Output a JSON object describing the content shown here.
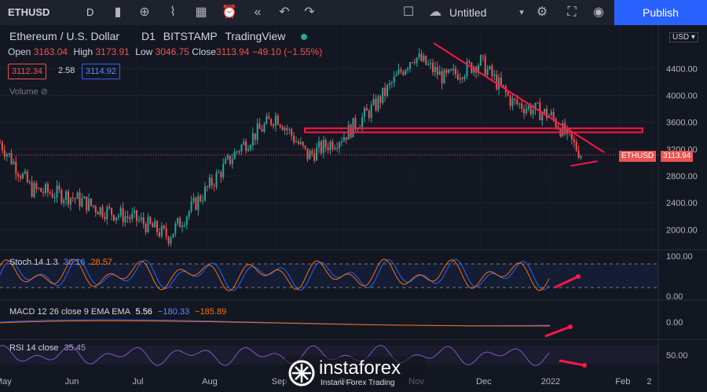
{
  "toolbar": {
    "symbol": "ETHUSD",
    "interval": "D",
    "layout_name": "Untitled",
    "publish_label": "Publish",
    "icons": [
      "candles-icon",
      "add-indicator-icon",
      "indicators-icon",
      "templates-icon",
      "alert-icon",
      "replay-icon",
      "undo-icon",
      "redo-icon",
      "layout-square-icon",
      "cloud-icon",
      "chevron-down-icon",
      "settings-icon",
      "fullscreen-icon",
      "camera-icon"
    ]
  },
  "legend": {
    "title": "Ethereum / U.S. Dollar",
    "interval": "D1",
    "exchange": "BITSTAMP",
    "source": "TradingView",
    "open_label": "Open",
    "open": "3163.04",
    "high_label": "High",
    "high": "3173.91",
    "low_label": "Low",
    "low": "3046.75",
    "close_label": "Close",
    "close": "3113.94",
    "change": "−49.10 (−1.55%)",
    "bid": "3112.34",
    "spread": "2.58",
    "ask": "3114.92",
    "volume_label": "Volume"
  },
  "axis": {
    "currency": "USD",
    "current_tag_label": "ETHUSD",
    "current_tag_value": "3113.94"
  },
  "indicators": {
    "stoch": {
      "label": "Stoch 14 1 3",
      "k": "30.16",
      "d": "28.57",
      "axis": [
        "100.00",
        "0.00"
      ]
    },
    "macd": {
      "label": "MACD 12 26 close 9 EMA EMA",
      "hist": "5.56",
      "macd": "−180.33",
      "signal": "−185.89",
      "axis": [
        "0.00"
      ]
    },
    "rsi": {
      "label": "RSI 14 close",
      "value": "35.45",
      "axis": [
        "50.00"
      ]
    }
  },
  "watermark": {
    "brand": "instaforex",
    "tagline": "Instant Forex Trading"
  },
  "colors": {
    "up": "#26a69a",
    "down": "#ef5350",
    "drawing": "#ff1744",
    "stoch_k": "#2962ff",
    "stoch_d": "#ff6d00",
    "rsi": "#7e57c2"
  },
  "chart_data": {
    "type": "candlestick",
    "symbol": "ETHUSD",
    "ylim": [
      1700,
      5000
    ],
    "yticks": [
      2000,
      2400,
      2800,
      3200,
      3600,
      4000,
      4400
    ],
    "xticks": [
      "May",
      "Jun",
      "Jul",
      "Aug",
      "Sep",
      "Oct",
      "Nov",
      "Dec",
      "2022",
      "Feb",
      "2"
    ],
    "x": [
      "2021-05",
      "2021-05-15",
      "2021-06",
      "2021-06-15",
      "2021-07",
      "2021-07-15",
      "2021-08",
      "2021-08-15",
      "2021-09",
      "2021-09-15",
      "2021-10",
      "2021-10-15",
      "2021-11",
      "2021-11-15",
      "2021-12",
      "2021-12-15",
      "2022-01",
      "2022-01-15"
    ],
    "close_series": [
      3300,
      2600,
      2500,
      2300,
      2150,
      1900,
      2600,
      3200,
      3700,
      3100,
      3400,
      3850,
      4600,
      4250,
      4500,
      3900,
      3700,
      3114
    ],
    "last_close": 3113.94,
    "annotations": {
      "resistance_zone": [
        3450,
        3510
      ],
      "trendline_from": [
        "2021-11-10",
        4780
      ],
      "trendline_to": [
        "2022-01-25",
        3150
      ],
      "support_line_from": [
        "2022-01-10",
        2950
      ],
      "support_line_to": [
        "2022-01-22",
        3020
      ]
    }
  }
}
